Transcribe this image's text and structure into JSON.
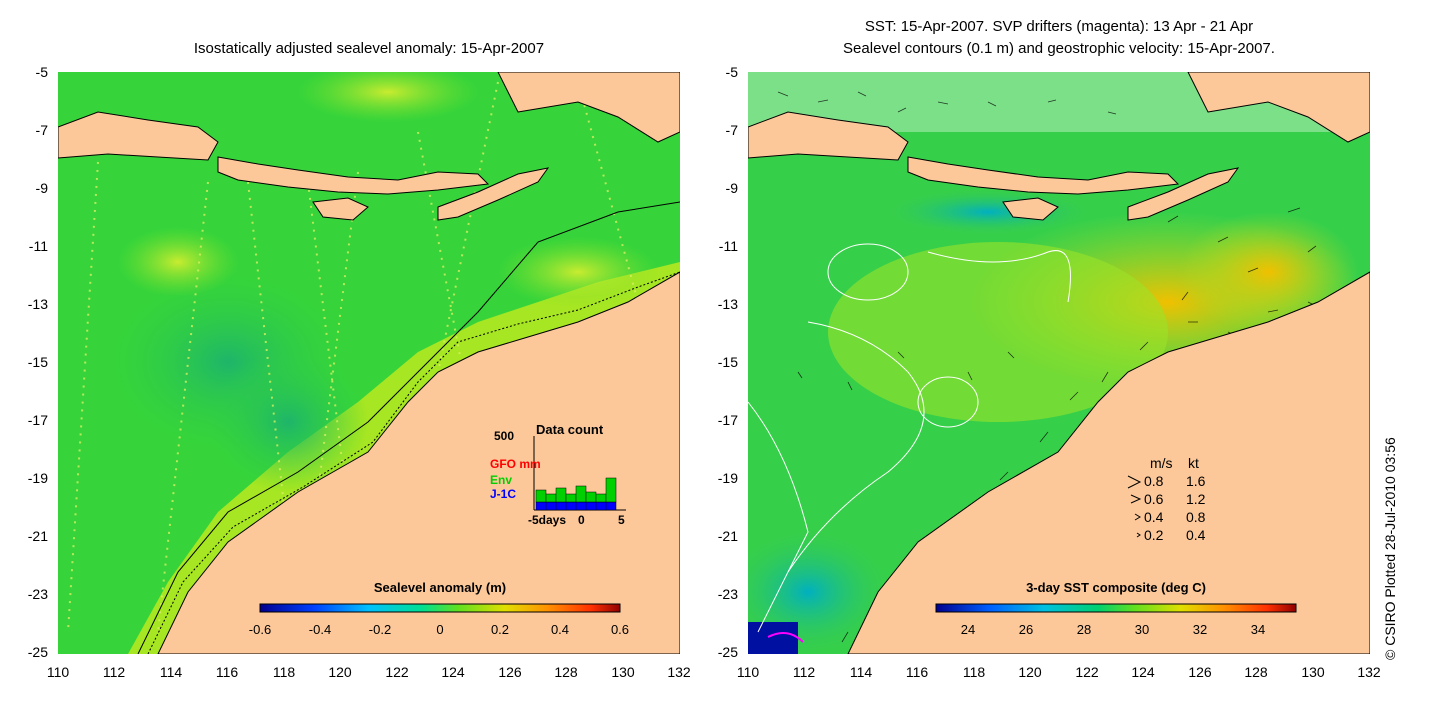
{
  "left_panel": {
    "title": "Isostatically adjusted sealevel anomaly: 15-Apr-2007",
    "colorbar": {
      "label": "Sealevel anomaly (m)",
      "ticks": [
        "-0.6",
        "-0.4",
        "-0.2",
        "0",
        "0.2",
        "0.4",
        "0.6"
      ],
      "colors": [
        "#00008f",
        "#0040ff",
        "#00c0ff",
        "#00e090",
        "#60e020",
        "#e0e000",
        "#ff9000",
        "#ff3000",
        "#900000"
      ]
    },
    "inset": {
      "title": "Data count",
      "ymax_label": "500",
      "xtick_labels": [
        "-5days",
        "0",
        "5"
      ],
      "series_labels": [
        {
          "label": "GFO mm",
          "color": "#ff0000"
        },
        {
          "label": "Env",
          "color": "#00d000"
        },
        {
          "label": "J-1C",
          "color": "#0000ff"
        }
      ]
    }
  },
  "right_panel": {
    "title_line1": "SST: 15-Apr-2007. SVP drifters (magenta): 13 Apr - 21 Apr",
    "title_line2": "Sealevel contours (0.1 m) and geostrophic velocity: 15-Apr-2007.",
    "colorbar": {
      "label": "3-day SST composite (deg C)",
      "ticks": [
        "24",
        "26",
        "28",
        "30",
        "32",
        "34"
      ],
      "colors": [
        "#00008f",
        "#0060ff",
        "#00c0e0",
        "#00d070",
        "#60e020",
        "#e0e000",
        "#ff9000",
        "#ff3000",
        "#900000"
      ]
    },
    "velocity_legend": {
      "header_ms": "m/s",
      "header_kt": "kt",
      "rows": [
        {
          "ms": "0.8",
          "kt": "1.6"
        },
        {
          "ms": "0.6",
          "kt": "1.2"
        },
        {
          "ms": "0.4",
          "kt": "0.8"
        },
        {
          "ms": "0.2",
          "kt": "0.4"
        }
      ]
    }
  },
  "axes": {
    "y_ticks": [
      "-5",
      "-7",
      "-9",
      "-11",
      "-13",
      "-15",
      "-17",
      "-19",
      "-21",
      "-23",
      "-25"
    ],
    "x_ticks": [
      "110",
      "112",
      "114",
      "116",
      "118",
      "120",
      "122",
      "124",
      "126",
      "128",
      "130",
      "132"
    ]
  },
  "colors": {
    "land": "#fcc89a",
    "ocean_base": "#33d13a",
    "shelf": "#a8e820"
  },
  "copyright": "© CSIRO Plotted 28-Jul-2010 03:56"
}
